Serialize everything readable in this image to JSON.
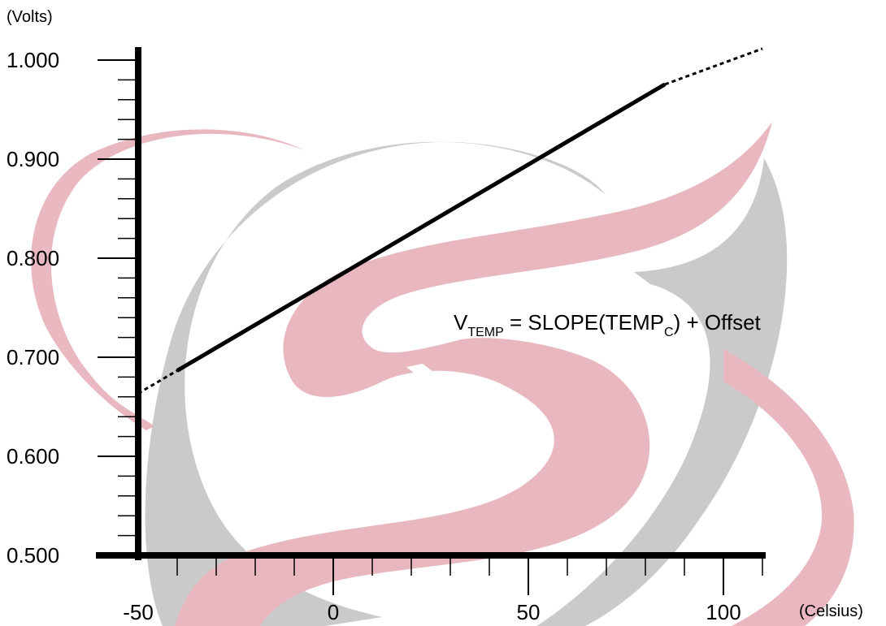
{
  "chart_data": {
    "type": "line",
    "title": "",
    "xlabel": "(Celsius)",
    "ylabel": "(Volts)",
    "xlim": [
      -50,
      110
    ],
    "ylim": [
      0.5,
      1.0
    ],
    "x_ticks": [
      -50,
      0,
      50,
      100
    ],
    "x_tick_labels": [
      "-50",
      "0",
      "50",
      "100"
    ],
    "y_ticks": [
      0.5,
      0.6,
      0.7,
      0.8,
      0.9,
      1.0
    ],
    "y_tick_labels": [
      "0.500",
      "0.600",
      "0.700",
      "0.800",
      "0.900",
      "1.000"
    ],
    "x_minor_step": 10,
    "y_minor_step": 0.02,
    "series": [
      {
        "solid_segment": {
          "x": [
            -40,
            85
          ],
          "y": [
            0.6865,
            0.9755
          ]
        },
        "dashed_extension_low": {
          "x": [
            -50,
            -40
          ],
          "y": [
            0.6635,
            0.6865
          ]
        },
        "dashed_extension_high": {
          "x": [
            85,
            110
          ],
          "y": [
            0.9755,
            1.0115
          ]
        }
      }
    ],
    "annotation": {
      "main": "V",
      "main_sub": "TEMP",
      "mid": " = SLOPE(TEMP",
      "mid_sub": "C",
      "end": ") + Offset"
    },
    "grid": false,
    "line_color": "#000000",
    "watermark_colors": {
      "red": "#e8b4bd",
      "gray": "#c8c8c8"
    }
  }
}
